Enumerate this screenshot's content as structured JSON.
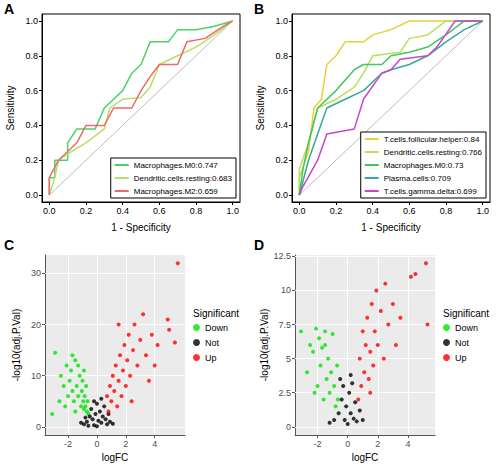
{
  "chart_data": [
    {
      "type": "line",
      "title": "A",
      "x_label": "1 - Specificity",
      "y_label": "Sensitivity",
      "xlim": [
        -0.04,
        1.04
      ],
      "ylim": [
        -0.04,
        1.04
      ],
      "xticks": [
        {
          "value": 0,
          "label": "0.0"
        },
        0.2,
        0.4,
        0.6,
        0.8,
        {
          "value": 1,
          "label": "1.0"
        }
      ],
      "yticks": [
        {
          "value": 0,
          "label": "0.0"
        },
        0.2,
        0.4,
        0.6,
        0.8,
        {
          "value": 1,
          "label": "1.0"
        }
      ],
      "grid": false,
      "legend": "bottom-right",
      "reference_line": {
        "x": [
          0,
          1
        ],
        "values": [
          0,
          1
        ],
        "color": "#bebebe"
      },
      "series": [
        {
          "name": "Macrophages.M0:0.747",
          "color": "#4bd36b",
          "x": [
            0,
            0,
            0.03,
            0.03,
            0.1,
            0.1,
            0.15,
            0.25,
            0.3,
            0.35,
            0.4,
            0.45,
            0.5,
            0.55,
            0.65,
            0.7,
            0.8,
            0.9,
            1
          ],
          "values": [
            0,
            0.1,
            0.1,
            0.2,
            0.2,
            0.3,
            0.38,
            0.38,
            0.5,
            0.55,
            0.6,
            0.7,
            0.75,
            0.88,
            0.88,
            0.95,
            0.95,
            0.97,
            1
          ]
        },
        {
          "name": "Dendritic.cells.resting:0.683",
          "color": "#b5e06a",
          "x": [
            0,
            0.03,
            0.05,
            0.12,
            0.2,
            0.3,
            0.33,
            0.4,
            0.5,
            0.55,
            0.6,
            0.7,
            0.8,
            0.9,
            1
          ],
          "values": [
            0,
            0.1,
            0.2,
            0.25,
            0.3,
            0.38,
            0.5,
            0.55,
            0.56,
            0.62,
            0.75,
            0.8,
            0.85,
            0.92,
            1
          ]
        },
        {
          "name": "Macrophages.M2:0.659",
          "color": "#ee6a6a",
          "x": [
            0,
            0,
            0.05,
            0.15,
            0.2,
            0.3,
            0.35,
            0.45,
            0.5,
            0.55,
            0.6,
            0.7,
            0.75,
            0.85,
            0.95,
            1
          ],
          "values": [
            0,
            0.1,
            0.2,
            0.3,
            0.4,
            0.4,
            0.5,
            0.5,
            0.6,
            0.68,
            0.75,
            0.75,
            0.88,
            0.9,
            0.97,
            1
          ]
        }
      ]
    },
    {
      "type": "line",
      "title": "B",
      "x_label": "1 - Specificity",
      "y_label": "Sensitivity",
      "xlim": [
        -0.04,
        1.04
      ],
      "ylim": [
        -0.04,
        1.04
      ],
      "xticks": [
        {
          "value": 0,
          "label": "0.0"
        },
        0.2,
        0.4,
        0.6,
        0.8,
        {
          "value": 1,
          "label": "1.0"
        }
      ],
      "yticks": [
        {
          "value": 0,
          "label": "0.0"
        },
        0.2,
        0.4,
        0.6,
        0.8,
        {
          "value": 1,
          "label": "1.0"
        }
      ],
      "grid": false,
      "legend": "bottom-right",
      "reference_line": {
        "x": [
          0,
          1
        ],
        "values": [
          0,
          1
        ],
        "color": "#bebebe"
      },
      "series": [
        {
          "name": "T.cells.follicular.helper:0.84",
          "color": "#e6d13a",
          "x": [
            0,
            0,
            0.05,
            0.08,
            0.12,
            0.15,
            0.2,
            0.25,
            0.35,
            0.4,
            0.5,
            0.6,
            1
          ],
          "values": [
            0,
            0.1,
            0.25,
            0.5,
            0.55,
            0.75,
            0.8,
            0.88,
            0.88,
            0.92,
            0.95,
            1,
            1
          ]
        },
        {
          "name": "Dendritic.cells.resting:0.766",
          "color": "#b8e05a",
          "x": [
            0,
            0,
            0.05,
            0.1,
            0.2,
            0.3,
            0.35,
            0.4,
            0.55,
            0.6,
            0.7,
            0.8,
            1
          ],
          "values": [
            0,
            0.15,
            0.3,
            0.5,
            0.55,
            0.62,
            0.7,
            0.8,
            0.82,
            0.9,
            0.92,
            1,
            1
          ]
        },
        {
          "name": "Macrophages.M0:0.73",
          "color": "#3fc760",
          "x": [
            0,
            0.02,
            0.05,
            0.1,
            0.2,
            0.3,
            0.35,
            0.45,
            0.5,
            0.6,
            0.7,
            0.8,
            0.9,
            1
          ],
          "values": [
            0,
            0.15,
            0.3,
            0.5,
            0.6,
            0.72,
            0.75,
            0.75,
            0.8,
            0.82,
            0.85,
            0.92,
            1,
            1
          ]
        },
        {
          "name": "Plasma.cells:0.709",
          "color": "#33a9a0",
          "x": [
            0,
            0.05,
            0.1,
            0.15,
            0.25,
            0.35,
            0.45,
            0.5,
            0.6,
            0.7,
            0.8,
            0.9,
            1
          ],
          "values": [
            0,
            0.2,
            0.35,
            0.5,
            0.55,
            0.6,
            0.7,
            0.72,
            0.75,
            0.8,
            0.88,
            0.95,
            1
          ]
        },
        {
          "name": "T.cells.gamma.delta:0.699",
          "color": "#cc44cc",
          "x": [
            0,
            0.02,
            0.1,
            0.15,
            0.3,
            0.35,
            0.45,
            0.5,
            0.55,
            0.7,
            0.75,
            0.85,
            1
          ],
          "values": [
            0,
            0.05,
            0.2,
            0.35,
            0.38,
            0.55,
            0.7,
            0.72,
            0.78,
            0.8,
            0.85,
            1,
            1
          ]
        }
      ]
    },
    {
      "type": "scatter",
      "title": "C",
      "x_label": "logFC",
      "y_label": "-log10(adj.P.Val)",
      "xlim": [
        -3.6,
        6.1
      ],
      "ylim": [
        -1.6,
        33.6
      ],
      "xticks": [
        -2,
        0,
        2,
        4
      ],
      "yticks": [
        0,
        10,
        20,
        30
      ],
      "grid": true,
      "legend": "right",
      "legend_title": "Significant",
      "marker": "circle",
      "series": [
        {
          "name": "Down",
          "color": "#00e600",
          "x": [
            -3.1,
            -2.9,
            -2.5,
            -2.3,
            -2.1,
            -2,
            -1.9,
            -1.8,
            -1.7,
            -1.6,
            -1.5,
            -1.4,
            -1.3,
            -1.2,
            -1.1,
            -1.05,
            -1,
            -0.95,
            -0.9,
            -0.85,
            -0.8,
            -0.75,
            -0.7,
            -0.65,
            -0.6,
            -1.5,
            -2.2,
            -1.3,
            -0.9,
            -1.7,
            -2.6
          ],
          "values": [
            2.5,
            14.5,
            10,
            8,
            12,
            6,
            9,
            11,
            7,
            5,
            13,
            8,
            6,
            10,
            4,
            7,
            9,
            5,
            3.5,
            6,
            4,
            8,
            3,
            5,
            2.5,
            3,
            4,
            12,
            11,
            14,
            5
          ]
        },
        {
          "name": "Not",
          "color": "#000000",
          "x": [
            -0.9,
            -0.7,
            -0.5,
            -0.4,
            -0.3,
            -0.2,
            -0.1,
            0,
            0.1,
            0.2,
            0.3,
            0.4,
            0.5,
            0.6,
            0.7,
            0.8,
            -0.6,
            0.9,
            -1.1,
            1.1,
            0,
            -0.2,
            0.3,
            -0.8
          ],
          "values": [
            0.5,
            1,
            2,
            3.5,
            1.5,
            0.3,
            2.5,
            0.1,
            1.2,
            3,
            0.8,
            2,
            4,
            1.5,
            0.5,
            2.5,
            0.2,
            1,
            0.8,
            0.6,
            4.5,
            5,
            5.5,
            1.8
          ]
        },
        {
          "name": "Up",
          "color": "#ff0000",
          "x": [
            0.7,
            0.8,
            0.9,
            1,
            1.1,
            1.2,
            1.3,
            1.4,
            1.5,
            1.6,
            1.7,
            1.8,
            1.9,
            2,
            2.1,
            2.2,
            2.3,
            2.5,
            2.6,
            2.8,
            3,
            3.2,
            3.4,
            3.6,
            3.8,
            4,
            4.2,
            2.4,
            1.5,
            5,
            5.4,
            5.6,
            4.9
          ],
          "values": [
            6,
            3,
            8,
            5,
            10,
            7,
            12,
            4,
            9,
            14,
            6,
            11,
            16,
            8,
            13,
            18,
            10,
            15,
            20,
            12,
            17,
            22,
            14,
            9,
            18,
            12,
            16,
            5,
            20,
            19,
            16.5,
            32,
            21
          ]
        }
      ]
    },
    {
      "type": "scatter",
      "title": "D",
      "x_label": "logFC",
      "y_label": "-log10(adj.P.Val)",
      "xlim": [
        -3.5,
        5.8
      ],
      "ylim": [
        -0.6,
        12.6
      ],
      "xticks": [
        -2,
        0,
        2,
        4
      ],
      "yticks": [
        0,
        2.5,
        5,
        7.5,
        10,
        12.5
      ],
      "grid": true,
      "legend": "right",
      "legend_title": "Significant",
      "marker": "circle",
      "series": [
        {
          "name": "Down",
          "color": "#00e600",
          "x": [
            -3.1,
            -2.7,
            -2.5,
            -2.3,
            -2.1,
            -2,
            -1.9,
            -1.8,
            -1.7,
            -1.6,
            -1.5,
            -1.4,
            -1.3,
            -1.2,
            -1.1,
            -1,
            -0.9,
            -0.8,
            -0.7,
            -0.65,
            -1.5,
            -2.2
          ],
          "values": [
            7,
            4,
            6,
            5.5,
            7.2,
            3,
            6.5,
            4.5,
            5.8,
            2,
            6,
            3.5,
            5,
            2.5,
            4,
            6.8,
            3,
            1.5,
            4.5,
            2,
            7,
            2.5
          ]
        },
        {
          "name": "Not",
          "color": "#000000",
          "x": [
            -0.9,
            -0.6,
            -0.4,
            -0.3,
            -0.2,
            -0.1,
            0,
            0.1,
            0.2,
            0.3,
            0.4,
            0.5,
            0.6,
            0.8,
            -0.5,
            0.2,
            -1.2,
            1
          ],
          "values": [
            0.5,
            1,
            2,
            3,
            0.5,
            1.5,
            0.2,
            2.5,
            1,
            3.2,
            0.6,
            1.8,
            0.4,
            1.2,
            3.5,
            3.8,
            0.3,
            0.5
          ]
        },
        {
          "name": "Up",
          "color": "#ff0000",
          "x": [
            0.7,
            0.8,
            0.9,
            1,
            1.1,
            1.2,
            1.3,
            1.4,
            1.5,
            1.6,
            1.7,
            1.8,
            1.9,
            2,
            2.2,
            2.4,
            2.5,
            2.7,
            3,
            3.2,
            3.5,
            4.2,
            4.5,
            5.2,
            5.3,
            1.5
          ],
          "values": [
            2,
            5,
            3,
            7,
            4,
            6,
            8,
            3.5,
            5.5,
            9,
            4.5,
            7,
            10,
            6,
            8.5,
            5,
            10.5,
            7.5,
            9,
            6,
            8,
            11,
            11.2,
            12,
            7.5,
            2.5
          ]
        }
      ]
    }
  ]
}
